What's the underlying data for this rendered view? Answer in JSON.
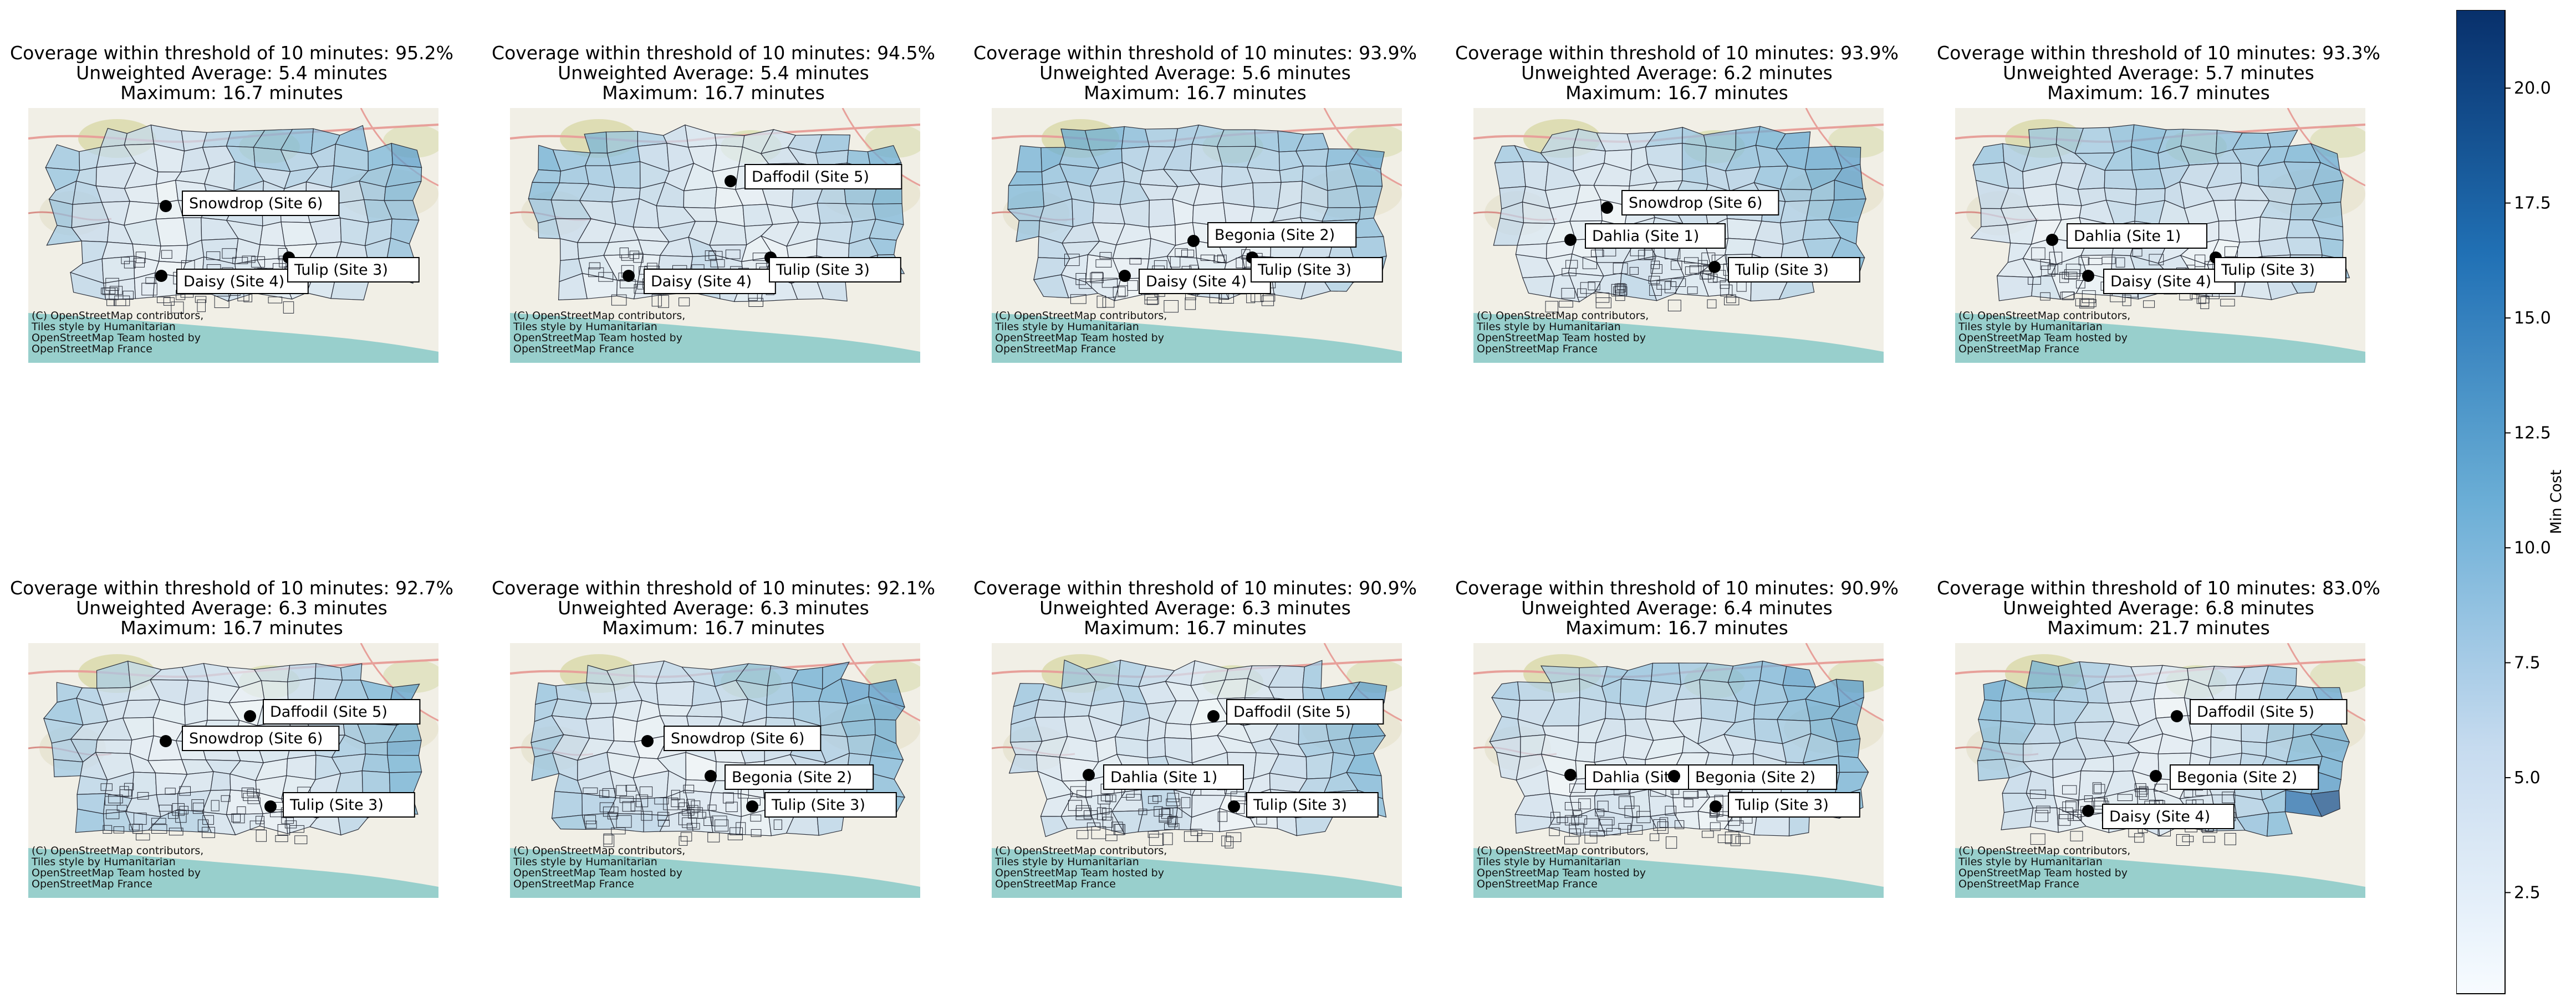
{
  "chart_data": {
    "type": "choropleth-map-grid",
    "units": "minutes",
    "panels": [
      {
        "title_lines": [
          "Coverage within threshold of 10 minutes: 95.2%",
          "Unweighted Average: 5.4 minutes",
          "Maximum: 16.7 minutes"
        ],
        "coverage_pct": 95.2,
        "unweighted_average": 5.4,
        "maximum": 16.7,
        "sites": [
          "Snowdrop (Site 6)",
          "Daisy (Site 4)",
          "Tulip (Site 3)"
        ],
        "attribution": [
          "(C) OpenStreetMap contributors,",
          "Tiles style by Humanitarian",
          "OpenStreetMap Team hosted by",
          "OpenStreetMap France"
        ]
      },
      {
        "title_lines": [
          "Coverage within threshold of 10 minutes: 94.5%",
          "Unweighted Average: 5.4 minutes",
          "Maximum: 16.7 minutes"
        ],
        "coverage_pct": 94.5,
        "unweighted_average": 5.4,
        "maximum": 16.7,
        "sites": [
          "Daffodil (Site 5)",
          "Daisy (Site 4)",
          "Tulip (Site 3)"
        ],
        "attribution": [
          "(C) OpenStreetMap contributors,",
          "Tiles style by Humanitarian",
          "OpenStreetMap Team hosted by",
          "OpenStreetMap France"
        ]
      },
      {
        "title_lines": [
          "Coverage within threshold of 10 minutes: 93.9%",
          "Unweighted Average: 5.6 minutes",
          "Maximum: 16.7 minutes"
        ],
        "coverage_pct": 93.9,
        "unweighted_average": 5.6,
        "maximum": 16.7,
        "sites": [
          "Begonia (Site 2)",
          "Daisy (Site 4)",
          "Tulip (Site 3)"
        ],
        "attribution": [
          "(C) OpenStreetMap contributors,",
          "Tiles style by Humanitarian",
          "OpenStreetMap Team hosted by",
          "OpenStreetMap France"
        ]
      },
      {
        "title_lines": [
          "Coverage within threshold of 10 minutes: 93.9%",
          "Unweighted Average: 6.2 minutes",
          "Maximum: 16.7 minutes"
        ],
        "coverage_pct": 93.9,
        "unweighted_average": 6.2,
        "maximum": 16.7,
        "sites": [
          "Snowdrop (Site 6)",
          "Dahlia (Site 1)",
          "Tulip (Site 3)"
        ],
        "attribution": [
          "(C) OpenStreetMap contributors,",
          "Tiles style by Humanitarian",
          "OpenStreetMap Team hosted by",
          "OpenStreetMap France"
        ]
      },
      {
        "title_lines": [
          "Coverage within threshold of 10 minutes: 93.3%",
          "Unweighted Average: 5.7 minutes",
          "Maximum: 16.7 minutes"
        ],
        "coverage_pct": 93.3,
        "unweighted_average": 5.7,
        "maximum": 16.7,
        "sites": [
          "Dahlia (Site 1)",
          "Daisy (Site 4)",
          "Tulip (Site 3)"
        ],
        "attribution": [
          "(C) OpenStreetMap contributors,",
          "Tiles style by Humanitarian",
          "OpenStreetMap Team hosted by",
          "OpenStreetMap France"
        ]
      },
      {
        "title_lines": [
          "Coverage within threshold of 10 minutes: 92.7%",
          "Unweighted Average: 6.3 minutes",
          "Maximum: 16.7 minutes"
        ],
        "coverage_pct": 92.7,
        "unweighted_average": 6.3,
        "maximum": 16.7,
        "sites": [
          "Daffodil (Site 5)",
          "Snowdrop (Site 6)",
          "Tulip (Site 3)"
        ],
        "attribution": [
          "(C) OpenStreetMap contributors,",
          "Tiles style by Humanitarian",
          "OpenStreetMap Team hosted by",
          "OpenStreetMap France"
        ]
      },
      {
        "title_lines": [
          "Coverage within threshold of 10 minutes: 92.1%",
          "Unweighted Average: 6.3 minutes",
          "Maximum: 16.7 minutes"
        ],
        "coverage_pct": 92.1,
        "unweighted_average": 6.3,
        "maximum": 16.7,
        "sites": [
          "Snowdrop (Site 6)",
          "Begonia (Site 2)",
          "Tulip (Site 3)"
        ],
        "attribution": [
          "(C) OpenStreetMap contributors,",
          "Tiles style by Humanitarian",
          "OpenStreetMap Team hosted by",
          "OpenStreetMap France"
        ]
      },
      {
        "title_lines": [
          "Coverage within threshold of 10 minutes: 90.9%",
          "Unweighted Average: 6.3 minutes",
          "Maximum: 16.7 minutes"
        ],
        "coverage_pct": 90.9,
        "unweighted_average": 6.3,
        "maximum": 16.7,
        "sites": [
          "Daffodil (Site 5)",
          "Dahlia (Site 1)",
          "Tulip (Site 3)"
        ],
        "attribution": [
          "(C) OpenStreetMap contributors,",
          "Tiles style by Humanitarian",
          "OpenStreetMap Team hosted by",
          "OpenStreetMap France"
        ]
      },
      {
        "title_lines": [
          "Coverage within threshold of 10 minutes: 90.9%",
          "Unweighted Average: 6.4 minutes",
          "Maximum: 16.7 minutes"
        ],
        "coverage_pct": 90.9,
        "unweighted_average": 6.4,
        "maximum": 16.7,
        "sites": [
          "Dahlia (Site",
          "Begonia (Site 2)",
          "Tulip (Site 3)"
        ],
        "attribution": [
          "(C) OpenStreetMap contributors,",
          "Tiles style by Humanitarian",
          "OpenStreetMap Team hosted by",
          "OpenStreetMap France"
        ]
      },
      {
        "title_lines": [
          "Coverage within threshold of 10 minutes: 83.0%",
          "Unweighted Average: 6.8 minutes",
          "Maximum: 21.7 minutes"
        ],
        "coverage_pct": 83.0,
        "unweighted_average": 6.8,
        "maximum": 21.7,
        "sites": [
          "Daffodil (Site 5)",
          "Begonia (Site 2)",
          "Daisy (Site 4)"
        ],
        "attribution": [
          "(C) OpenStreetMap contributors,",
          "Tiles style by Humanitarian",
          "OpenStreetMap Team hosted by",
          "OpenStreetMap France"
        ]
      }
    ],
    "colorbar": {
      "label": "Min Cost",
      "colormap": "Blues",
      "range": [
        0.3,
        21.7
      ],
      "ticks": [
        2.5,
        5.0,
        7.5,
        10.0,
        12.5,
        15.0,
        17.5,
        20.0
      ],
      "tick_labels": [
        "2.5",
        "5.0",
        "7.5",
        "10.0",
        "12.5",
        "15.0",
        "17.5",
        "20.0"
      ]
    }
  }
}
